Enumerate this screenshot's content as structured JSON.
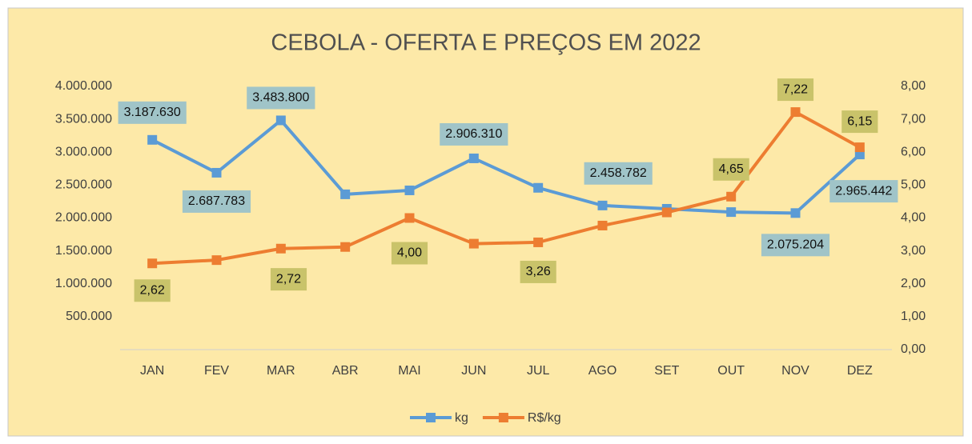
{
  "chart_data": {
    "type": "line",
    "title": "CEBOLA - OFERTA E PREÇOS EM 2022",
    "categories": [
      "JAN",
      "FEV",
      "MAR",
      "ABR",
      "MAI",
      "JUN",
      "JUL",
      "AGO",
      "SET",
      "OUT",
      "NOV",
      "DEZ"
    ],
    "series": [
      {
        "name": "kg",
        "color": "#5b9bd5",
        "axis": "y",
        "values": [
          3187630,
          2687783,
          3483800,
          2360000,
          2420000,
          2906310,
          2458782,
          2190000,
          2140000,
          2090000,
          2075204,
          2965442
        ],
        "value_labels": [
          "3.187.630",
          "2.687.783",
          "3.483.800",
          null,
          null,
          "2.906.310",
          "2.458.782",
          null,
          null,
          null,
          "2.075.204",
          "2.965.442"
        ]
      },
      {
        "name": "R$/kg",
        "color": "#ed7d31",
        "axis": "y2",
        "values": [
          2.62,
          2.72,
          3.07,
          3.12,
          4.0,
          3.22,
          3.26,
          3.77,
          4.17,
          4.65,
          7.22,
          6.15
        ],
        "value_labels": [
          "2,62",
          "2,72",
          null,
          null,
          "4,00",
          null,
          "3,26",
          null,
          null,
          "4,65",
          "7,22",
          "6,15"
        ]
      }
    ],
    "ylim": [
      0,
      4000000
    ],
    "yticks": [
      {
        "value": 500000,
        "label": "500.000"
      },
      {
        "value": 1000000,
        "label": "1.000.000"
      },
      {
        "value": 1500000,
        "label": "1.500.000"
      },
      {
        "value": 2000000,
        "label": "2.000.000"
      },
      {
        "value": 2500000,
        "label": "2.500.000"
      },
      {
        "value": 3000000,
        "label": "3.000.000"
      },
      {
        "value": 3500000,
        "label": "3.500.000"
      },
      {
        "value": 4000000,
        "label": "4.000.000"
      }
    ],
    "y2lim": [
      0,
      8
    ],
    "y2ticks": [
      {
        "value": 0,
        "label": "0,00"
      },
      {
        "value": 1,
        "label": "1,00"
      },
      {
        "value": 2,
        "label": "2,00"
      },
      {
        "value": 3,
        "label": "3,00"
      },
      {
        "value": 4,
        "label": "4,00"
      },
      {
        "value": 5,
        "label": "5,00"
      },
      {
        "value": 6,
        "label": "6,00"
      },
      {
        "value": 7,
        "label": "7,00"
      },
      {
        "value": 8,
        "label": "8,00"
      }
    ],
    "legend": "bottom",
    "label_colors": [
      "#a0c4c8",
      "#c9c36a"
    ]
  }
}
